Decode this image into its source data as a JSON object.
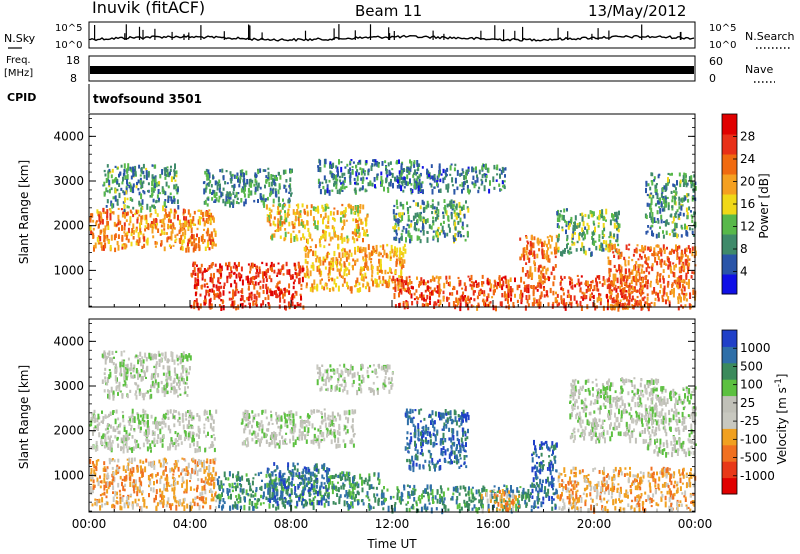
{
  "header": {
    "radar_title": "Inuvik (fitACF)",
    "beam_label": "Beam 11",
    "date_label": "13/May/2012"
  },
  "summary_panels": {
    "nsky_label": "N.Sky",
    "nsearch_label": "N.Search",
    "noise_ticks": [
      "10^5",
      "10^0"
    ],
    "freq_label": "Freq.",
    "freq_unit": "[MHz]",
    "freq_ticks": [
      "18",
      "8"
    ],
    "nave_label": "Nave",
    "nave_ticks": [
      "60",
      "0"
    ],
    "cpid_label": "CPID",
    "cpid_value": "twofsound 3501"
  },
  "colors": {
    "power": [
      "#1010e6",
      "#2a55a8",
      "#3f8a6a",
      "#58b84a",
      "#f0d818",
      "#f5a020",
      "#f06a10",
      "#e83018",
      "#e00000"
    ],
    "velocity": [
      "#2040c8",
      "#2f6fa8",
      "#3b8a5c",
      "#5cc040",
      "#c0c0b8",
      "#c8c8c0",
      "#f0a020",
      "#f07020",
      "#e83818",
      "#e00000"
    ]
  },
  "chart_data": [
    {
      "type": "heatmap",
      "name": "power",
      "xlabel": "",
      "ylabel": "Slant Range [km]",
      "x_ticks": [
        "00:00",
        "04:00",
        "08:00",
        "12:00",
        "16:00",
        "20:00",
        "00:00"
      ],
      "xlim_hours": [
        0,
        24
      ],
      "y_ticks": [
        1000,
        2000,
        3000,
        4000
      ],
      "ylim": [
        180,
        4500
      ],
      "colorbar_label": "Power [dB]",
      "colorbar_ticks": [
        4,
        8,
        12,
        16,
        20,
        24,
        28
      ],
      "colorbar_range": [
        0,
        32
      ],
      "bands": [
        {
          "t0": 0.0,
          "t1": 5.0,
          "r0": 1500,
          "r1": 2400,
          "level": 22
        },
        {
          "t0": 0.5,
          "t1": 3.5,
          "r0": 2400,
          "r1": 3400,
          "level": 9
        },
        {
          "t0": 4.0,
          "t1": 8.5,
          "r0": 200,
          "r1": 1200,
          "level": 28
        },
        {
          "t0": 4.5,
          "t1": 8.0,
          "r0": 2500,
          "r1": 3300,
          "level": 8
        },
        {
          "t0": 7.0,
          "t1": 11.0,
          "r0": 1700,
          "r1": 2500,
          "level": 18
        },
        {
          "t0": 8.5,
          "t1": 12.5,
          "r0": 600,
          "r1": 1600,
          "level": 20
        },
        {
          "t0": 9.0,
          "t1": 13.0,
          "r0": 2800,
          "r1": 3500,
          "level": 7
        },
        {
          "t0": 12.0,
          "t1": 15.0,
          "r0": 1700,
          "r1": 2600,
          "level": 10
        },
        {
          "t0": 12.5,
          "t1": 16.5,
          "r0": 2800,
          "r1": 3400,
          "level": 7
        },
        {
          "t0": 12.0,
          "t1": 22.0,
          "r0": 200,
          "r1": 900,
          "level": 26
        },
        {
          "t0": 17.0,
          "t1": 18.5,
          "r0": 900,
          "r1": 1800,
          "level": 24
        },
        {
          "t0": 18.5,
          "t1": 21.0,
          "r0": 1400,
          "r1": 2400,
          "level": 11
        },
        {
          "t0": 20.5,
          "t1": 24.0,
          "r0": 200,
          "r1": 1600,
          "level": 24
        },
        {
          "t0": 22.0,
          "t1": 24.0,
          "r0": 1800,
          "r1": 3200,
          "level": 9
        }
      ]
    },
    {
      "type": "heatmap",
      "name": "velocity",
      "xlabel": "Time UT",
      "ylabel": "Slant Range [km]",
      "x_ticks": [
        "00:00",
        "04:00",
        "08:00",
        "12:00",
        "16:00",
        "20:00",
        "00:00"
      ],
      "xlim_hours": [
        0,
        24
      ],
      "y_ticks": [
        1000,
        2000,
        3000,
        4000
      ],
      "ylim": [
        180,
        4500
      ],
      "colorbar_label": "Velocity [m s^-1]",
      "colorbar_ticks": [
        "1000",
        "500",
        "100",
        "25",
        "-25",
        "-100",
        "-500",
        "-1000"
      ],
      "bands": [
        {
          "t0": 0.0,
          "t1": 5.0,
          "r0": 1600,
          "r1": 2500,
          "level": 0
        },
        {
          "t0": 0.0,
          "t1": 5.0,
          "r0": 300,
          "r1": 1400,
          "level": -250
        },
        {
          "t0": 0.5,
          "t1": 4.0,
          "r0": 2800,
          "r1": 3800,
          "level": 0
        },
        {
          "t0": 5.0,
          "t1": 11.5,
          "r0": 300,
          "r1": 1100,
          "level": 150
        },
        {
          "t0": 7.0,
          "t1": 9.5,
          "r0": 400,
          "r1": 1300,
          "level": 700
        },
        {
          "t0": 6.0,
          "t1": 10.5,
          "r0": 1700,
          "r1": 2500,
          "level": 0
        },
        {
          "t0": 9.0,
          "t1": 12.0,
          "r0": 2900,
          "r1": 3500,
          "level": 0
        },
        {
          "t0": 11.5,
          "t1": 17.5,
          "r0": 250,
          "r1": 800,
          "level": 150
        },
        {
          "t0": 12.5,
          "t1": 15.0,
          "r0": 1200,
          "r1": 2500,
          "level": 300
        },
        {
          "t0": 15.5,
          "t1": 17.0,
          "r0": 250,
          "r1": 700,
          "level": -200
        },
        {
          "t0": 17.5,
          "t1": 18.5,
          "r0": 300,
          "r1": 1800,
          "level": 600
        },
        {
          "t0": 18.5,
          "t1": 24.0,
          "r0": 250,
          "r1": 1200,
          "level": -300
        },
        {
          "t0": 19.0,
          "t1": 22.5,
          "r0": 1800,
          "r1": 3200,
          "level": 0
        },
        {
          "t0": 22.0,
          "t1": 24.0,
          "r0": 1500,
          "r1": 3000,
          "level": 0
        }
      ]
    }
  ]
}
